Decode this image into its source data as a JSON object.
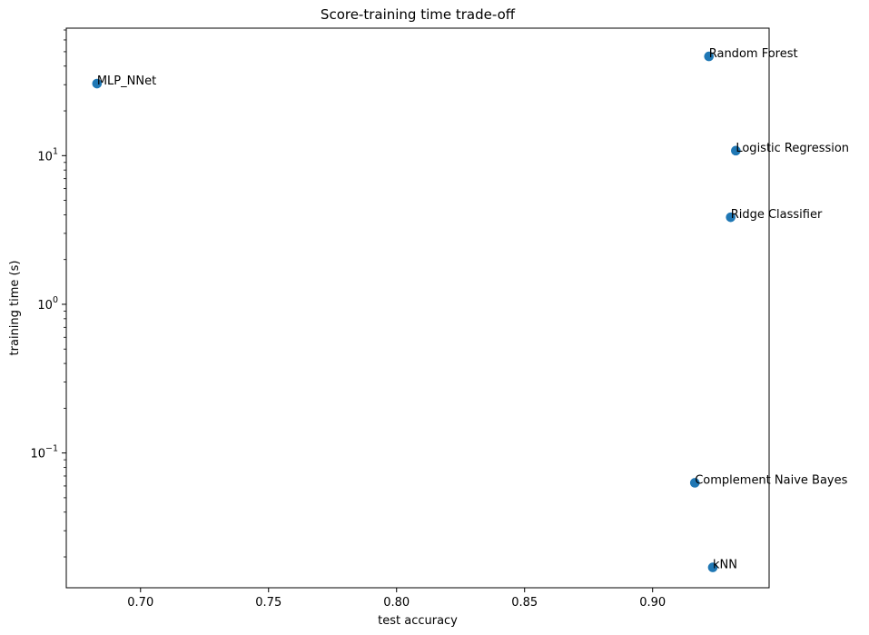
{
  "chart_data": {
    "type": "scatter",
    "title": "Score-training time trade-off",
    "xlabel": "test accuracy",
    "ylabel": "training time (s)",
    "xscale": "linear",
    "yscale": "log",
    "xlim": [
      0.671,
      0.9455
    ],
    "ylim": [
      0.0124,
      72
    ],
    "x_ticks": [
      0.7,
      0.75,
      0.8,
      0.85,
      0.9
    ],
    "x_tick_labels": [
      "0.70",
      "0.75",
      "0.80",
      "0.85",
      "0.90"
    ],
    "y_ticks": [
      0.1,
      1,
      10
    ],
    "y_tick_labels": [
      {
        "base": "10",
        "exp": "−1"
      },
      {
        "base": "10",
        "exp": "0"
      },
      {
        "base": "10",
        "exp": "1"
      }
    ],
    "grid": false,
    "point_color": "#1f77b4",
    "points": [
      {
        "label": "MLP_NNet",
        "x": 0.683,
        "y": 30.5
      },
      {
        "label": "Random Forest",
        "x": 0.922,
        "y": 46.5
      },
      {
        "label": "Logistic Regression",
        "x": 0.9325,
        "y": 10.8
      },
      {
        "label": "Ridge Classifier",
        "x": 0.9305,
        "y": 3.85
      },
      {
        "label": "Complement Naive Bayes",
        "x": 0.9165,
        "y": 0.063
      },
      {
        "label": "kNN",
        "x": 0.9235,
        "y": 0.017
      }
    ]
  }
}
